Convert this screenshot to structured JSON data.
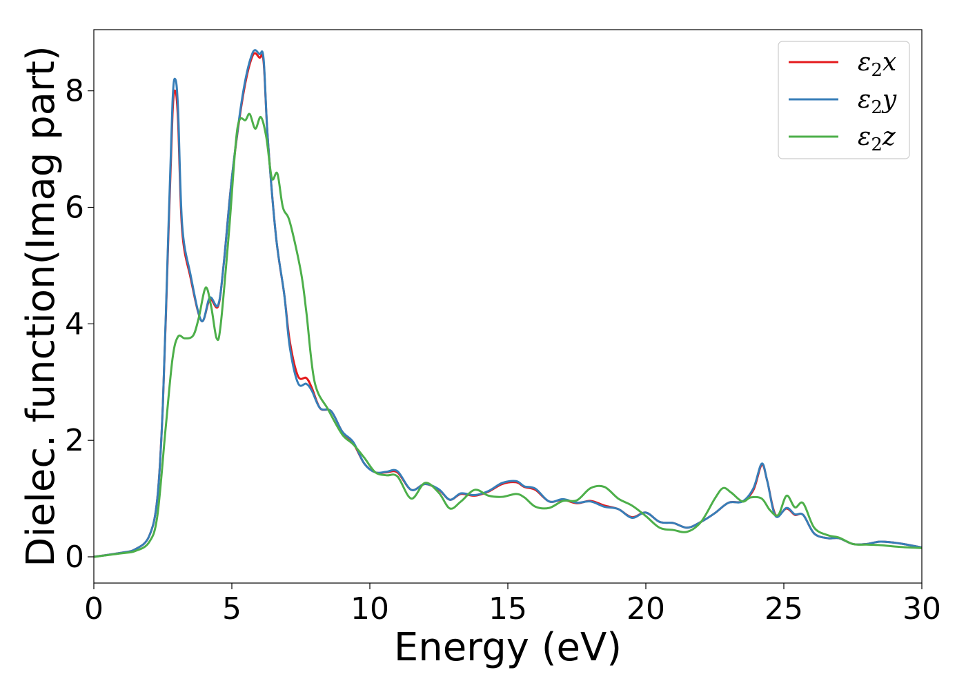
{
  "chart_data": {
    "type": "line",
    "title": "",
    "xlabel": "Energy (eV)",
    "ylabel": "Dielec. function(Imag part)",
    "xlim": [
      0,
      30
    ],
    "ylim": [
      -0.45,
      9.05
    ],
    "xticks": [
      0,
      5,
      10,
      15,
      20,
      25,
      30
    ],
    "yticks": [
      0,
      2,
      4,
      6,
      8
    ],
    "grid": false,
    "legend_position": "top-right",
    "series": [
      {
        "name": "ε2x",
        "legend_sub": "2",
        "legend_base": "ε",
        "legend_suffix": "x",
        "color": "#e41a1c",
        "points": [
          [
            0,
            0
          ],
          [
            1,
            0.07
          ],
          [
            1.5,
            0.13
          ],
          [
            2,
            0.35
          ],
          [
            2.3,
            1.0
          ],
          [
            2.5,
            2.6
          ],
          [
            2.7,
            5.5
          ],
          [
            2.85,
            7.6
          ],
          [
            2.95,
            8.0
          ],
          [
            3.05,
            7.5
          ],
          [
            3.2,
            5.6
          ],
          [
            3.5,
            4.8
          ],
          [
            3.9,
            4.05
          ],
          [
            4.2,
            4.42
          ],
          [
            4.5,
            4.3
          ],
          [
            4.7,
            5.0
          ],
          [
            5.0,
            6.5
          ],
          [
            5.4,
            7.9
          ],
          [
            5.75,
            8.6
          ],
          [
            6.0,
            8.57
          ],
          [
            6.15,
            8.5
          ],
          [
            6.3,
            7.2
          ],
          [
            6.6,
            5.5
          ],
          [
            6.9,
            4.5
          ],
          [
            7.1,
            3.7
          ],
          [
            7.4,
            3.1
          ],
          [
            7.7,
            3.07
          ],
          [
            7.9,
            2.9
          ],
          [
            8.2,
            2.55
          ],
          [
            8.6,
            2.5
          ],
          [
            9.0,
            2.15
          ],
          [
            9.4,
            1.95
          ],
          [
            9.8,
            1.6
          ],
          [
            10.2,
            1.45
          ],
          [
            10.6,
            1.45
          ],
          [
            11.0,
            1.45
          ],
          [
            11.5,
            1.15
          ],
          [
            12.0,
            1.25
          ],
          [
            12.5,
            1.15
          ],
          [
            12.9,
            0.98
          ],
          [
            13.3,
            1.08
          ],
          [
            13.8,
            1.05
          ],
          [
            14.3,
            1.12
          ],
          [
            14.8,
            1.25
          ],
          [
            15.3,
            1.28
          ],
          [
            15.6,
            1.2
          ],
          [
            16.0,
            1.15
          ],
          [
            16.5,
            0.95
          ],
          [
            17.0,
            0.98
          ],
          [
            17.5,
            0.92
          ],
          [
            18.0,
            0.96
          ],
          [
            18.5,
            0.88
          ],
          [
            19.0,
            0.82
          ],
          [
            19.5,
            0.68
          ],
          [
            20.0,
            0.76
          ],
          [
            20.5,
            0.6
          ],
          [
            21.0,
            0.58
          ],
          [
            21.5,
            0.5
          ],
          [
            22.0,
            0.6
          ],
          [
            22.5,
            0.75
          ],
          [
            23.0,
            0.93
          ],
          [
            23.5,
            0.95
          ],
          [
            23.9,
            1.15
          ],
          [
            24.2,
            1.58
          ],
          [
            24.4,
            1.3
          ],
          [
            24.7,
            0.72
          ],
          [
            25.1,
            0.83
          ],
          [
            25.4,
            0.72
          ],
          [
            25.7,
            0.72
          ],
          [
            26.1,
            0.4
          ],
          [
            26.6,
            0.32
          ],
          [
            27.0,
            0.32
          ],
          [
            27.5,
            0.22
          ],
          [
            28.0,
            0.22
          ],
          [
            28.5,
            0.26
          ],
          [
            29.2,
            0.23
          ],
          [
            30,
            0.16
          ]
        ]
      },
      {
        "name": "ε2y",
        "legend_sub": "2",
        "legend_base": "ε",
        "legend_suffix": "y",
        "color": "#377eb8",
        "points": [
          [
            0,
            0
          ],
          [
            1,
            0.07
          ],
          [
            1.5,
            0.13
          ],
          [
            2,
            0.35
          ],
          [
            2.3,
            1.0
          ],
          [
            2.5,
            2.6
          ],
          [
            2.7,
            5.6
          ],
          [
            2.85,
            7.8
          ],
          [
            2.95,
            8.2
          ],
          [
            3.05,
            7.7
          ],
          [
            3.2,
            5.7
          ],
          [
            3.5,
            4.85
          ],
          [
            3.9,
            4.05
          ],
          [
            4.2,
            4.45
          ],
          [
            4.5,
            4.32
          ],
          [
            4.7,
            5.0
          ],
          [
            5.0,
            6.5
          ],
          [
            5.4,
            7.95
          ],
          [
            5.75,
            8.65
          ],
          [
            6.0,
            8.63
          ],
          [
            6.15,
            8.55
          ],
          [
            6.3,
            7.2
          ],
          [
            6.6,
            5.5
          ],
          [
            6.9,
            4.5
          ],
          [
            7.1,
            3.6
          ],
          [
            7.4,
            2.98
          ],
          [
            7.7,
            2.97
          ],
          [
            7.9,
            2.85
          ],
          [
            8.2,
            2.55
          ],
          [
            8.6,
            2.5
          ],
          [
            9.0,
            2.15
          ],
          [
            9.4,
            1.97
          ],
          [
            9.8,
            1.6
          ],
          [
            10.2,
            1.45
          ],
          [
            10.6,
            1.46
          ],
          [
            11.0,
            1.47
          ],
          [
            11.5,
            1.15
          ],
          [
            12.0,
            1.25
          ],
          [
            12.5,
            1.16
          ],
          [
            12.9,
            0.98
          ],
          [
            13.3,
            1.09
          ],
          [
            13.8,
            1.06
          ],
          [
            14.3,
            1.13
          ],
          [
            14.8,
            1.27
          ],
          [
            15.3,
            1.3
          ],
          [
            15.6,
            1.21
          ],
          [
            16.0,
            1.17
          ],
          [
            16.5,
            0.95
          ],
          [
            17.0,
            0.99
          ],
          [
            17.5,
            0.93
          ],
          [
            18.0,
            0.95
          ],
          [
            18.5,
            0.86
          ],
          [
            19.0,
            0.82
          ],
          [
            19.5,
            0.67
          ],
          [
            20.0,
            0.76
          ],
          [
            20.5,
            0.6
          ],
          [
            21.0,
            0.58
          ],
          [
            21.5,
            0.5
          ],
          [
            22.0,
            0.6
          ],
          [
            22.5,
            0.75
          ],
          [
            23.0,
            0.93
          ],
          [
            23.5,
            0.95
          ],
          [
            23.9,
            1.18
          ],
          [
            24.2,
            1.6
          ],
          [
            24.4,
            1.3
          ],
          [
            24.7,
            0.7
          ],
          [
            25.1,
            0.84
          ],
          [
            25.4,
            0.73
          ],
          [
            25.7,
            0.72
          ],
          [
            26.1,
            0.4
          ],
          [
            26.6,
            0.32
          ],
          [
            27.0,
            0.32
          ],
          [
            27.5,
            0.22
          ],
          [
            28.0,
            0.22
          ],
          [
            28.5,
            0.26
          ],
          [
            29.2,
            0.23
          ],
          [
            30,
            0.16
          ]
        ]
      },
      {
        "name": "ε2z",
        "legend_sub": "2",
        "legend_base": "ε",
        "legend_suffix": "z",
        "color": "#4daf4a",
        "points": [
          [
            0,
            0
          ],
          [
            1,
            0.06
          ],
          [
            1.5,
            0.1
          ],
          [
            2,
            0.25
          ],
          [
            2.3,
            0.7
          ],
          [
            2.6,
            2.2
          ],
          [
            2.85,
            3.4
          ],
          [
            3.05,
            3.78
          ],
          [
            3.3,
            3.75
          ],
          [
            3.6,
            3.8
          ],
          [
            3.8,
            4.1
          ],
          [
            4.05,
            4.62
          ],
          [
            4.25,
            4.3
          ],
          [
            4.45,
            3.75
          ],
          [
            4.6,
            4.0
          ],
          [
            4.9,
            5.6
          ],
          [
            5.2,
            7.35
          ],
          [
            5.5,
            7.5
          ],
          [
            5.65,
            7.6
          ],
          [
            5.85,
            7.35
          ],
          [
            6.05,
            7.55
          ],
          [
            6.25,
            7.2
          ],
          [
            6.45,
            6.5
          ],
          [
            6.65,
            6.58
          ],
          [
            6.85,
            6.0
          ],
          [
            7.1,
            5.75
          ],
          [
            7.5,
            4.9
          ],
          [
            7.7,
            4.2
          ],
          [
            8.0,
            3.0
          ],
          [
            8.5,
            2.52
          ],
          [
            9.0,
            2.1
          ],
          [
            9.4,
            1.93
          ],
          [
            9.8,
            1.7
          ],
          [
            10.2,
            1.45
          ],
          [
            10.6,
            1.4
          ],
          [
            11.0,
            1.38
          ],
          [
            11.5,
            1.0
          ],
          [
            12.0,
            1.27
          ],
          [
            12.5,
            1.1
          ],
          [
            12.9,
            0.83
          ],
          [
            13.3,
            0.95
          ],
          [
            13.8,
            1.15
          ],
          [
            14.3,
            1.05
          ],
          [
            14.8,
            1.03
          ],
          [
            15.3,
            1.08
          ],
          [
            15.6,
            1.02
          ],
          [
            16.0,
            0.86
          ],
          [
            16.5,
            0.84
          ],
          [
            17.0,
            0.96
          ],
          [
            17.5,
            0.97
          ],
          [
            18.0,
            1.18
          ],
          [
            18.5,
            1.2
          ],
          [
            19.0,
            1.0
          ],
          [
            19.5,
            0.88
          ],
          [
            20.0,
            0.7
          ],
          [
            20.5,
            0.5
          ],
          [
            21.0,
            0.46
          ],
          [
            21.5,
            0.43
          ],
          [
            22.0,
            0.6
          ],
          [
            22.5,
            1.0
          ],
          [
            22.8,
            1.18
          ],
          [
            23.1,
            1.1
          ],
          [
            23.5,
            0.95
          ],
          [
            23.8,
            1.02
          ],
          [
            24.2,
            1.0
          ],
          [
            24.5,
            0.8
          ],
          [
            24.8,
            0.72
          ],
          [
            25.1,
            1.05
          ],
          [
            25.4,
            0.85
          ],
          [
            25.7,
            0.92
          ],
          [
            26.1,
            0.5
          ],
          [
            26.6,
            0.37
          ],
          [
            27.0,
            0.33
          ],
          [
            27.5,
            0.22
          ],
          [
            28.0,
            0.21
          ],
          [
            28.5,
            0.2
          ],
          [
            29.2,
            0.17
          ],
          [
            30,
            0.15
          ]
        ]
      }
    ]
  }
}
